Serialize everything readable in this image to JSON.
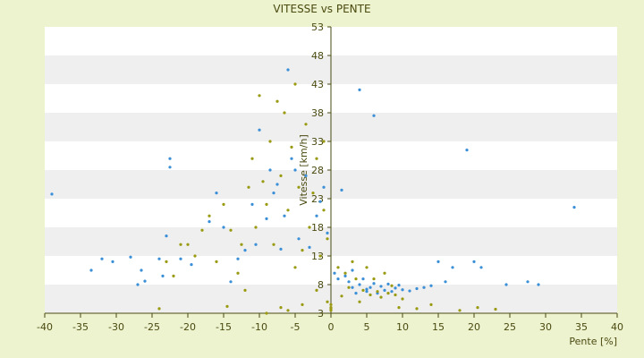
{
  "chart_data": {
    "type": "scatter",
    "title": "VITESSE vs PENTE",
    "xlabel": "Pente [%]",
    "ylabel": "Vitesse [km/h]",
    "xlim": [
      -40,
      40
    ],
    "ylim": [
      3,
      53
    ],
    "x_ticks": [
      "-40",
      "-35",
      "-30",
      "-25",
      "-20",
      "-15",
      "-10",
      "-5",
      "0",
      "5",
      "10",
      "15",
      "20",
      "25",
      "30",
      "35",
      "40"
    ],
    "y_ticks": [
      "3",
      "8",
      "13",
      "18",
      "23",
      "28",
      "33",
      "38",
      "43",
      "48",
      "53"
    ],
    "grid": "horizontal alternating bands",
    "colors": {
      "background": "#edf2cf",
      "band_white": "#ffffff",
      "band_grey": "#efefef",
      "series_blue": "#3a8fd6",
      "series_olive": "#9a9a10",
      "axis": "#4a4a10"
    },
    "series": [
      {
        "color": "#3a8fd6",
        "points": [
          [
            -39,
            23.8
          ],
          [
            -33.5,
            10.5
          ],
          [
            -32,
            12.5
          ],
          [
            -30.5,
            12
          ],
          [
            -28,
            12.8
          ],
          [
            -26.5,
            10.5
          ],
          [
            -26,
            8.6
          ],
          [
            -27,
            8
          ],
          [
            -24,
            12.5
          ],
          [
            -23.5,
            9.5
          ],
          [
            -23,
            16.5
          ],
          [
            -22.5,
            28.5
          ],
          [
            -22.5,
            30
          ],
          [
            -21,
            12.5
          ],
          [
            -19.5,
            11.5
          ],
          [
            -17,
            19
          ],
          [
            -16,
            24
          ],
          [
            -15,
            18
          ],
          [
            -14,
            8.5
          ],
          [
            -13,
            12.5
          ],
          [
            -12,
            14
          ],
          [
            -11,
            22
          ],
          [
            -10.5,
            15
          ],
          [
            -10,
            35
          ],
          [
            -9,
            19.5
          ],
          [
            -8.5,
            28
          ],
          [
            -8,
            24
          ],
          [
            -7.5,
            25.5
          ],
          [
            -7,
            14.2
          ],
          [
            -6.5,
            20
          ],
          [
            -6,
            45.5
          ],
          [
            -5.5,
            30
          ],
          [
            -5,
            28
          ],
          [
            -4.5,
            16
          ],
          [
            -3.5,
            27
          ],
          [
            -3,
            14.5
          ],
          [
            -2,
            20
          ],
          [
            -1.5,
            22.5
          ],
          [
            -1,
            25
          ],
          [
            -0.5,
            17
          ],
          [
            0.5,
            10
          ],
          [
            1,
            9
          ],
          [
            1.5,
            24.5
          ],
          [
            2,
            9.5
          ],
          [
            2.5,
            8.5
          ],
          [
            3,
            10.5
          ],
          [
            3,
            7.5
          ],
          [
            3.5,
            6.5
          ],
          [
            4,
            8
          ],
          [
            4,
            42
          ],
          [
            4.5,
            9
          ],
          [
            5,
            7.2
          ],
          [
            5,
            6.8
          ],
          [
            5.5,
            7.5
          ],
          [
            6,
            37.5
          ],
          [
            6,
            8.2
          ],
          [
            6.5,
            6.5
          ],
          [
            7,
            7.7
          ],
          [
            7.5,
            7
          ],
          [
            8,
            8.1
          ],
          [
            8.5,
            6.8
          ],
          [
            9,
            7.4
          ],
          [
            9.5,
            7.9
          ],
          [
            10,
            7.1
          ],
          [
            11,
            6.9
          ],
          [
            12,
            7.3
          ],
          [
            13,
            7.5
          ],
          [
            14,
            7.8
          ],
          [
            15,
            12
          ],
          [
            16,
            8.5
          ],
          [
            17,
            11
          ],
          [
            19,
            31.5
          ],
          [
            20,
            12
          ],
          [
            21,
            11
          ],
          [
            24.5,
            8
          ],
          [
            27.5,
            8.5
          ],
          [
            29,
            8
          ],
          [
            34,
            21.5
          ]
        ]
      },
      {
        "color": "#9a9a10",
        "points": [
          [
            -24,
            3.8
          ],
          [
            -23,
            12
          ],
          [
            -22,
            9.5
          ],
          [
            -21,
            15
          ],
          [
            -20,
            15
          ],
          [
            -19,
            13
          ],
          [
            -18,
            17.5
          ],
          [
            -17,
            20
          ],
          [
            -16,
            12
          ],
          [
            -15,
            22
          ],
          [
            -14.5,
            4.2
          ],
          [
            -14,
            17.5
          ],
          [
            -13,
            10
          ],
          [
            -12.5,
            15
          ],
          [
            -12,
            7
          ],
          [
            -11.5,
            25
          ],
          [
            -11,
            30
          ],
          [
            -10.5,
            18
          ],
          [
            -10,
            41
          ],
          [
            -9.5,
            26
          ],
          [
            -9,
            3
          ],
          [
            -9,
            22
          ],
          [
            -8.5,
            33
          ],
          [
            -8,
            15
          ],
          [
            -7.5,
            40
          ],
          [
            -7,
            4
          ],
          [
            -7,
            27
          ],
          [
            -6.5,
            38
          ],
          [
            -6,
            21
          ],
          [
            -6,
            3.5
          ],
          [
            -5.5,
            32
          ],
          [
            -5,
            43
          ],
          [
            -5,
            11
          ],
          [
            -4.5,
            25
          ],
          [
            -4,
            14
          ],
          [
            -4,
            4.5
          ],
          [
            -3.5,
            36
          ],
          [
            -3,
            18
          ],
          [
            -2.5,
            24
          ],
          [
            -2,
            7
          ],
          [
            -2,
            30
          ],
          [
            -1.5,
            13
          ],
          [
            -1,
            21
          ],
          [
            -1,
            33
          ],
          [
            -0.5,
            16
          ],
          [
            -0.5,
            5
          ],
          [
            0,
            4.5
          ],
          [
            0,
            4
          ],
          [
            0,
            3.8
          ],
          [
            0,
            3.5
          ],
          [
            1,
            11
          ],
          [
            1.5,
            6
          ],
          [
            2,
            10
          ],
          [
            2.5,
            7.5
          ],
          [
            3,
            12
          ],
          [
            3.5,
            9
          ],
          [
            4,
            5
          ],
          [
            4.5,
            7
          ],
          [
            5,
            11
          ],
          [
            5.5,
            6.2
          ],
          [
            6,
            9
          ],
          [
            6.5,
            6.8
          ],
          [
            7,
            5.8
          ],
          [
            7.5,
            10
          ],
          [
            8,
            6.5
          ],
          [
            8.5,
            7.8
          ],
          [
            9,
            6.2
          ],
          [
            9.5,
            4
          ],
          [
            10,
            5.5
          ],
          [
            12,
            3.8
          ],
          [
            14,
            4.5
          ],
          [
            18,
            3.5
          ],
          [
            20.5,
            4
          ],
          [
            23,
            3.7
          ]
        ]
      }
    ]
  }
}
